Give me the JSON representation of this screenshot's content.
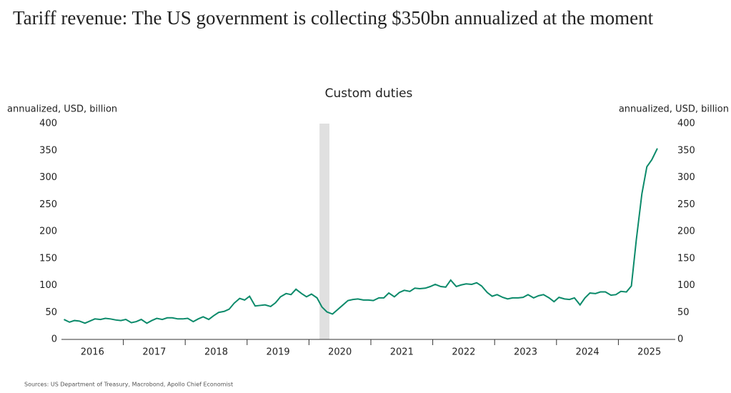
{
  "chart_data": {
    "type": "line",
    "title": "Tariff revenue: The US government is collecting $350bn annualized at the moment",
    "subtitle": "Custom duties",
    "y_label": "annualized, USD, billion",
    "y2_label": "annualized, USD, billion",
    "source": "Sources: US Department of Treasury, Macrobond, Apollo Chief Economist",
    "xlim": [
      2016,
      2026
    ],
    "xticks": [
      {
        "value": 2016.5,
        "label": "2016"
      },
      {
        "value": 2017.5,
        "label": "2017"
      },
      {
        "value": 2018.5,
        "label": "2018"
      },
      {
        "value": 2019.5,
        "label": "2019"
      },
      {
        "value": 2020.5,
        "label": "2020"
      },
      {
        "value": 2021.5,
        "label": "2021"
      },
      {
        "value": 2022.5,
        "label": "2022"
      },
      {
        "value": 2023.5,
        "label": "2023"
      },
      {
        "value": 2024.5,
        "label": "2024"
      },
      {
        "value": 2025.5,
        "label": "2025"
      }
    ],
    "ylim": [
      0,
      400
    ],
    "yticks": [
      0,
      50,
      100,
      150,
      200,
      250,
      300,
      350,
      400
    ],
    "y2lim": [
      0,
      400
    ],
    "y2ticks": [
      0,
      50,
      100,
      150,
      200,
      250,
      300,
      350,
      400
    ],
    "recession": [
      2020.17,
      2020.33
    ],
    "recession_color": "#e0e0e0",
    "x": [
      2016.04,
      2016.13,
      2016.21,
      2016.29,
      2016.38,
      2016.46,
      2016.54,
      2016.63,
      2016.71,
      2016.79,
      2016.88,
      2016.96,
      2017.04,
      2017.13,
      2017.21,
      2017.29,
      2017.38,
      2017.46,
      2017.54,
      2017.63,
      2017.71,
      2017.79,
      2017.88,
      2017.96,
      2018.04,
      2018.13,
      2018.21,
      2018.29,
      2018.38,
      2018.46,
      2018.54,
      2018.63,
      2018.71,
      2018.79,
      2018.88,
      2018.96,
      2019.04,
      2019.13,
      2019.21,
      2019.29,
      2019.38,
      2019.46,
      2019.54,
      2019.63,
      2019.71,
      2019.79,
      2019.88,
      2019.96,
      2020.04,
      2020.13,
      2020.21,
      2020.29,
      2020.38,
      2020.46,
      2020.54,
      2020.63,
      2020.71,
      2020.79,
      2020.88,
      2020.96,
      2021.04,
      2021.13,
      2021.21,
      2021.29,
      2021.38,
      2021.46,
      2021.54,
      2021.63,
      2021.71,
      2021.79,
      2021.88,
      2021.96,
      2022.04,
      2022.13,
      2022.21,
      2022.29,
      2022.38,
      2022.46,
      2022.54,
      2022.63,
      2022.71,
      2022.79,
      2022.88,
      2022.96,
      2023.04,
      2023.13,
      2023.21,
      2023.29,
      2023.38,
      2023.46,
      2023.54,
      2023.63,
      2023.71,
      2023.79,
      2023.88,
      2023.96,
      2024.04,
      2024.13,
      2024.21,
      2024.29,
      2024.38,
      2024.46,
      2024.54,
      2024.63,
      2024.71,
      2024.79,
      2024.88,
      2024.96,
      2025.04,
      2025.13,
      2025.21,
      2025.29,
      2025.38,
      2025.46,
      2025.54,
      2025.63
    ],
    "series": [
      {
        "name": "Custom duties",
        "color": "#0b8a6a",
        "values": [
          37,
          32,
          35,
          34,
          30,
          34,
          38,
          37,
          39,
          38,
          36,
          35,
          37,
          31,
          33,
          37,
          30,
          35,
          39,
          37,
          40,
          40,
          38,
          38,
          39,
          33,
          38,
          42,
          37,
          44,
          50,
          52,
          56,
          67,
          76,
          73,
          80,
          62,
          63,
          64,
          61,
          68,
          79,
          85,
          83,
          93,
          85,
          79,
          84,
          77,
          60,
          51,
          47,
          55,
          63,
          72,
          74,
          75,
          73,
          73,
          72,
          77,
          77,
          86,
          79,
          87,
          91,
          89,
          95,
          94,
          95,
          98,
          102,
          98,
          97,
          110,
          98,
          101,
          103,
          102,
          105,
          99,
          87,
          80,
          83,
          78,
          75,
          77,
          77,
          78,
          83,
          77,
          81,
          83,
          77,
          70,
          78,
          75,
          74,
          77,
          64,
          77,
          86,
          85,
          88,
          88,
          82,
          83,
          89,
          88,
          99,
          185,
          270,
          320,
          333,
          354
        ]
      }
    ]
  }
}
